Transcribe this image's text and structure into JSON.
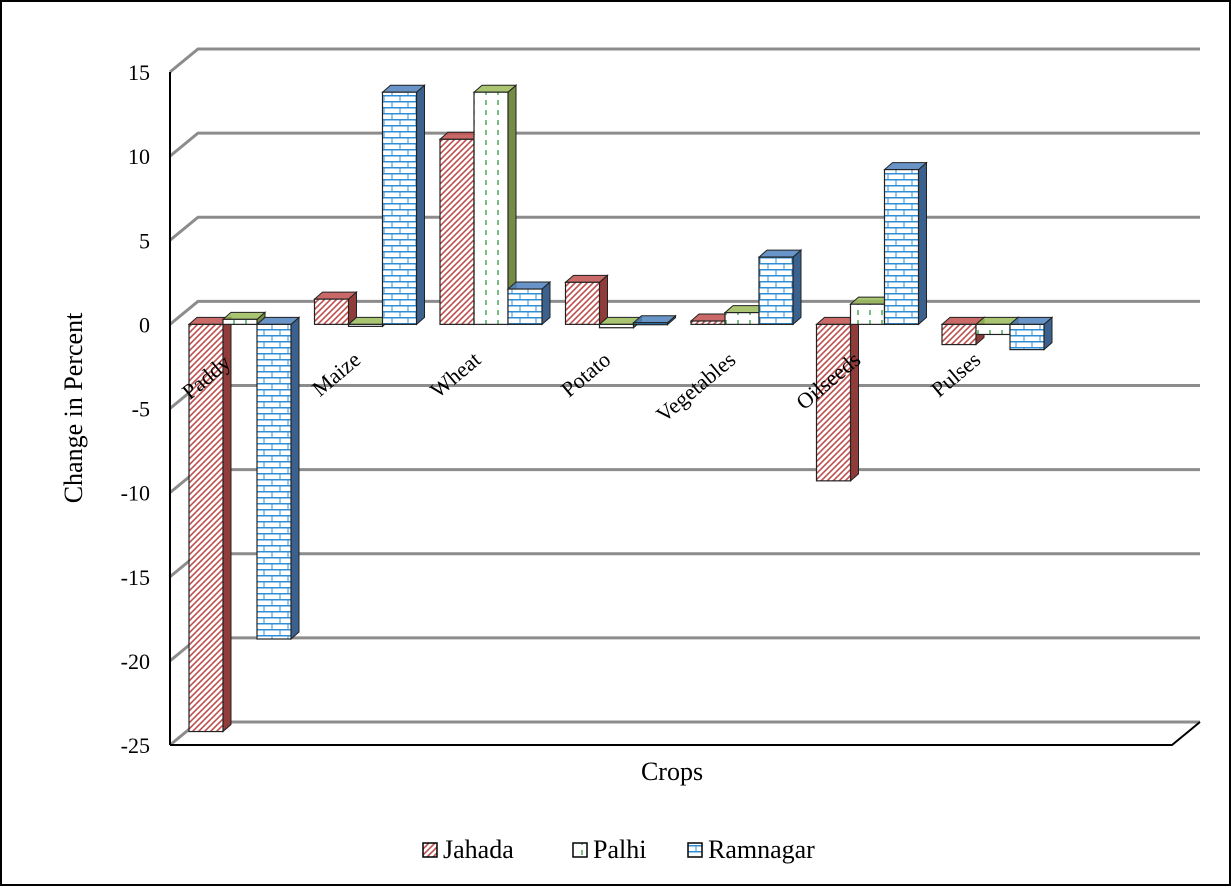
{
  "chart_data": {
    "type": "bar",
    "title": "",
    "xlabel": "Crops",
    "ylabel": "Change in Percent",
    "ylim": [
      -25,
      15
    ],
    "yticks": [
      15,
      10,
      5,
      0,
      -5,
      -10,
      -15,
      -20,
      -25
    ],
    "grid": true,
    "legend_position": "bottom",
    "categories": [
      "Paddy",
      "Maize",
      "Wheat",
      "Potato",
      "Vegetables",
      "Oilseeds",
      "Pulses"
    ],
    "series": [
      {
        "name": "Jahada",
        "values": [
          -24.2,
          1.5,
          11.0,
          2.5,
          0.2,
          -9.3,
          -1.2
        ],
        "color": "#c0504d",
        "pattern": "diagonal-hatch"
      },
      {
        "name": "Palhi",
        "values": [
          0.3,
          0.0,
          13.8,
          -0.2,
          0.7,
          1.2,
          -0.6
        ],
        "color": "#9bbb59",
        "pattern": "dashed-vertical"
      },
      {
        "name": "Ramnagar",
        "values": [
          -18.7,
          13.8,
          2.1,
          0.1,
          4.0,
          9.2,
          -1.5
        ],
        "color": "#4f81bd",
        "pattern": "brick"
      }
    ]
  }
}
